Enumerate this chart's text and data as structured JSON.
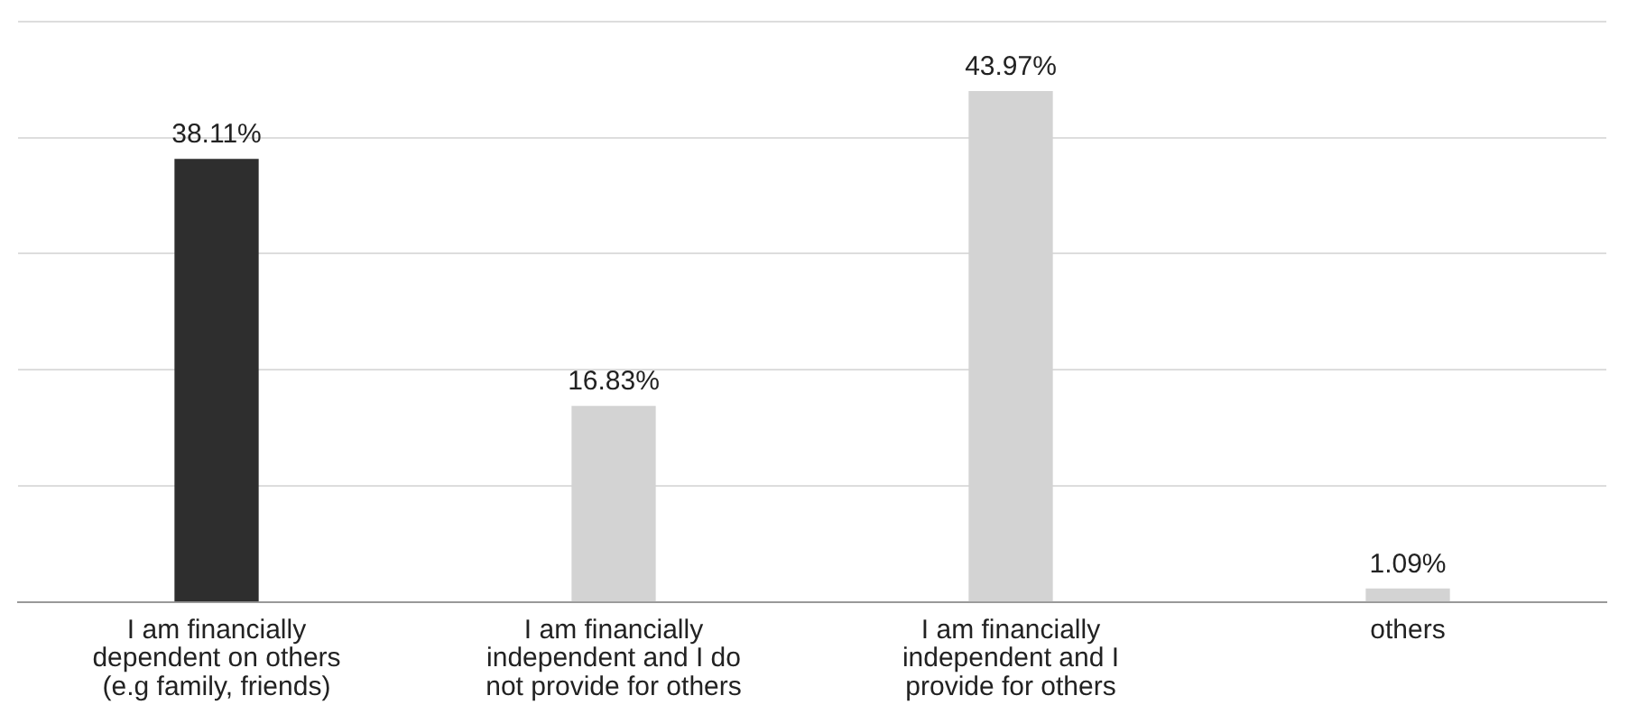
{
  "chart_data": {
    "type": "bar",
    "categories": [
      "I am financially dependent on others (e.g family, friends)",
      "I am financially independent and I do not provide for others",
      "I am financially independent and I provide for others",
      "others"
    ],
    "values": [
      38.11,
      16.83,
      43.97,
      1.09
    ],
    "colors": [
      "#2e2e2e",
      "#d3d3d3",
      "#d3d3d3",
      "#d3d3d3"
    ],
    "value_labels": [
      "38.11%",
      "16.83%",
      "43.97%",
      "1.09%"
    ],
    "ylim": [
      0,
      50
    ],
    "yticks": [
      {
        "value": 0,
        "label": null
      },
      {
        "value": 10,
        "label": null
      },
      {
        "value": 20,
        "label": null
      },
      {
        "value": 30,
        "label": null
      },
      {
        "value": 40,
        "label": null
      },
      {
        "value": 50,
        "label": null
      }
    ],
    "grid": "y",
    "tick_labels": "x",
    "legend": false
  }
}
